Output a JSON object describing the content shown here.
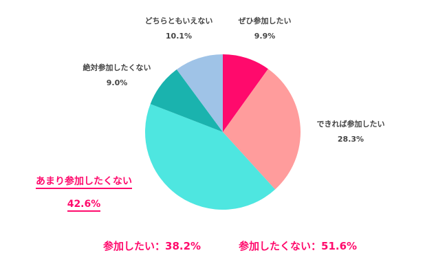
{
  "chart_data": {
    "type": "pie",
    "title": "",
    "start_angle_deg": 0,
    "direction": "clockwise",
    "slices": [
      {
        "label": "ぜひ参加したい",
        "value": 9.9,
        "display": "9.9%",
        "color": "#ff0a6c"
      },
      {
        "label": "できれば参加したい",
        "value": 28.3,
        "display": "28.3%",
        "color": "#ff9c9c"
      },
      {
        "label": "あまり参加したくない",
        "value": 42.6,
        "display": "42.6%",
        "color": "#4ee6e0",
        "highlighted": true
      },
      {
        "label": "絶対参加したくない",
        "value": 9.0,
        "display": "9.0%",
        "color": "#1ab3ae"
      },
      {
        "label": "どちらともいえない",
        "value": 10.1,
        "display": "10.1%",
        "color": "#9fc3e7"
      }
    ],
    "legend": "none (direct labels)"
  },
  "labels": {
    "zehi": {
      "name": "ぜひ参加したい",
      "pct": "9.9%"
    },
    "dekireba": {
      "name": "できれば参加したい",
      "pct": "28.3%"
    },
    "amari": {
      "name": "あまり参加したくない",
      "pct": "42.6%"
    },
    "zettai": {
      "name": "絶対参加したくない",
      "pct": "9.0%"
    },
    "dochira": {
      "name": "どちらともいえない",
      "pct": "10.1%"
    }
  },
  "summary": {
    "want": "参加したい：38.2%",
    "not_want": "参加したくない：51.6%"
  },
  "accent_color": "#ff0a6c"
}
